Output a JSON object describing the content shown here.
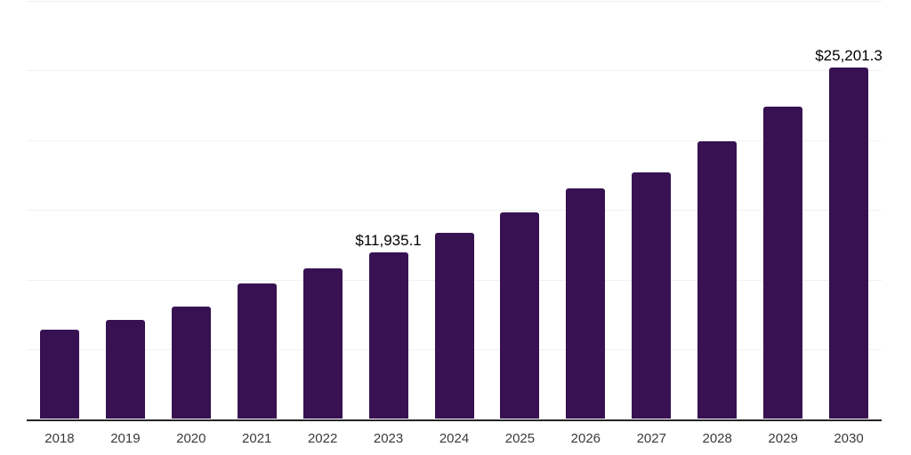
{
  "chart_data": {
    "type": "bar",
    "title": "",
    "xlabel": "",
    "ylabel": "",
    "categories": [
      "2018",
      "2019",
      "2020",
      "2021",
      "2022",
      "2023",
      "2024",
      "2025",
      "2026",
      "2027",
      "2028",
      "2029",
      "2030"
    ],
    "values": [
      6415,
      7110,
      8050,
      9695,
      10795,
      11935.1,
      13360,
      14800,
      16560,
      17670,
      19925,
      22410,
      25201.3
    ],
    "data_labels": {
      "2023": "$11,935.1",
      "2030": "$25,201.3"
    },
    "ylim": [
      0,
      30000
    ],
    "gridline_step": 5000,
    "grid": "horizontal-only",
    "legend": "none",
    "y_axis_tick_labels": "none",
    "colors": {
      "bar": "#371151",
      "gridline": "#f1f1f1",
      "axis_line": "#262626",
      "value_label": "#000000",
      "tick_label": "#3a3a3a",
      "background": "#ffffff"
    }
  }
}
